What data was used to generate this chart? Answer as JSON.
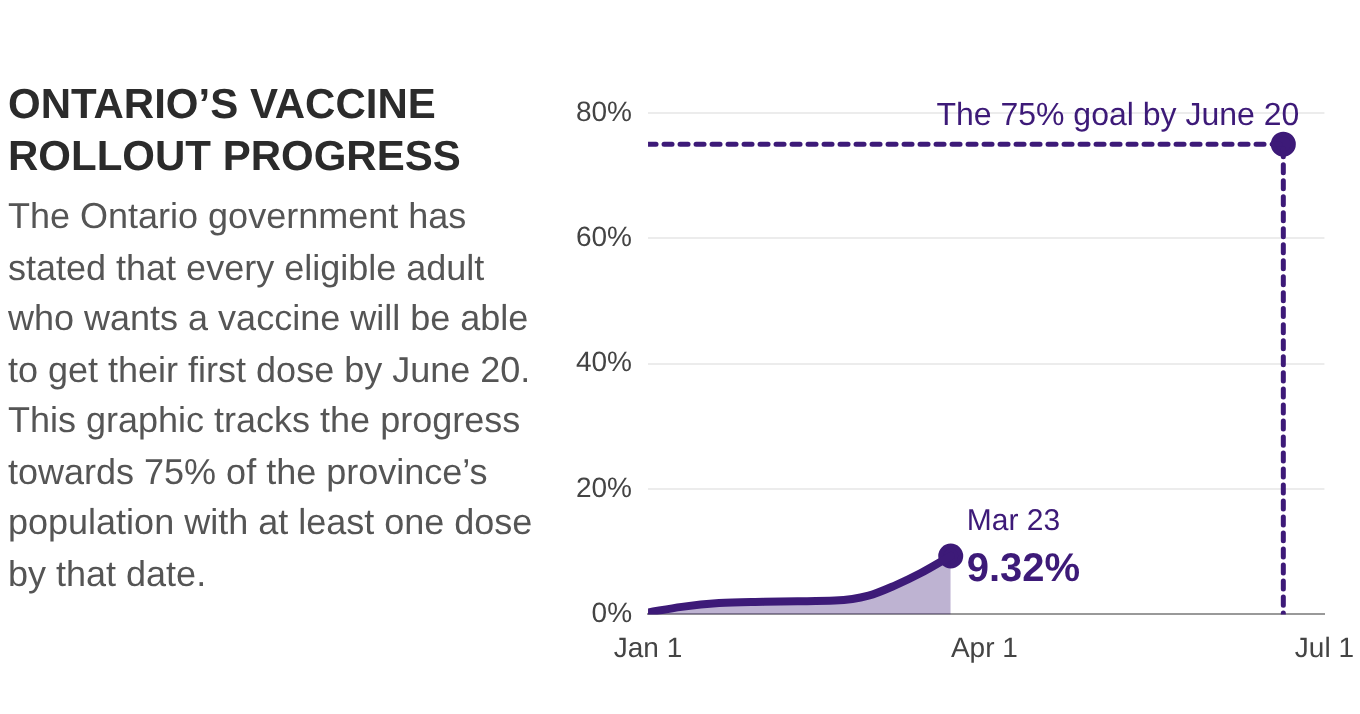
{
  "chart_data": {
    "type": "area",
    "title": "ONTARIO’S VACCINE ROLLOUT PROGRESS",
    "subtitle": "The Ontario government has stated that every eligible adult who wants a vaccine will be able to get their first dose by June 20. This graphic tracks the progress towards 75% of the province’s population with at least one dose by that date.",
    "series": [
      {
        "color": "#3d1a78",
        "marker": "none",
        "x": [
          "--01-01",
          "--01-10",
          "--01-20",
          "--02-01",
          "--02-10",
          "--02-20",
          "--03-01",
          "--03-08",
          "--03-15",
          "--03-23"
        ],
        "values": [
          0.3,
          1.2,
          1.8,
          2.0,
          2.1,
          2.2,
          3.0,
          4.6,
          6.6,
          9.32
        ]
      },
      {
        "type": "line",
        "color": "#3d1a78",
        "line_style": "dashed",
        "marker": "none",
        "x": [
          "--01-01",
          "--06-20",
          "--06-20"
        ],
        "values": [
          75,
          75,
          0
        ]
      },
      {
        "type": "scatter",
        "color": "#3d1a78",
        "marker": "circle",
        "x": [
          "--06-20"
        ],
        "values": [
          75
        ]
      },
      {
        "type": "scatter",
        "color": "#3d1a78",
        "marker": "circle",
        "x": [
          "--03-23"
        ],
        "values": [
          9.32
        ]
      }
    ],
    "annotations": [
      {
        "text": "The 75% goal by June 20",
        "x": "--06-20",
        "y": 75
      },
      {
        "text": "Mar 23",
        "x": "--03-23",
        "y": 9.32
      },
      {
        "text": "9.32%",
        "x": "--03-23",
        "y": 9.32
      }
    ],
    "xlim": [
      "--01-01",
      "--07-01"
    ],
    "xticks": [
      {
        "value": "--01-01",
        "label": "Jan 1"
      },
      {
        "value": "--04-01",
        "label": "Apr 1"
      },
      {
        "value": "--07-01",
        "label": "Jul 1"
      }
    ],
    "ylim": [
      0,
      80
    ],
    "yticks": [
      {
        "value": 0,
        "label": "0%"
      },
      {
        "value": 20,
        "label": "20%"
      },
      {
        "value": 40,
        "label": "40%"
      },
      {
        "value": 60,
        "label": "60%"
      },
      {
        "value": 80,
        "label": "80%"
      }
    ],
    "grid": "y",
    "legend": false
  }
}
